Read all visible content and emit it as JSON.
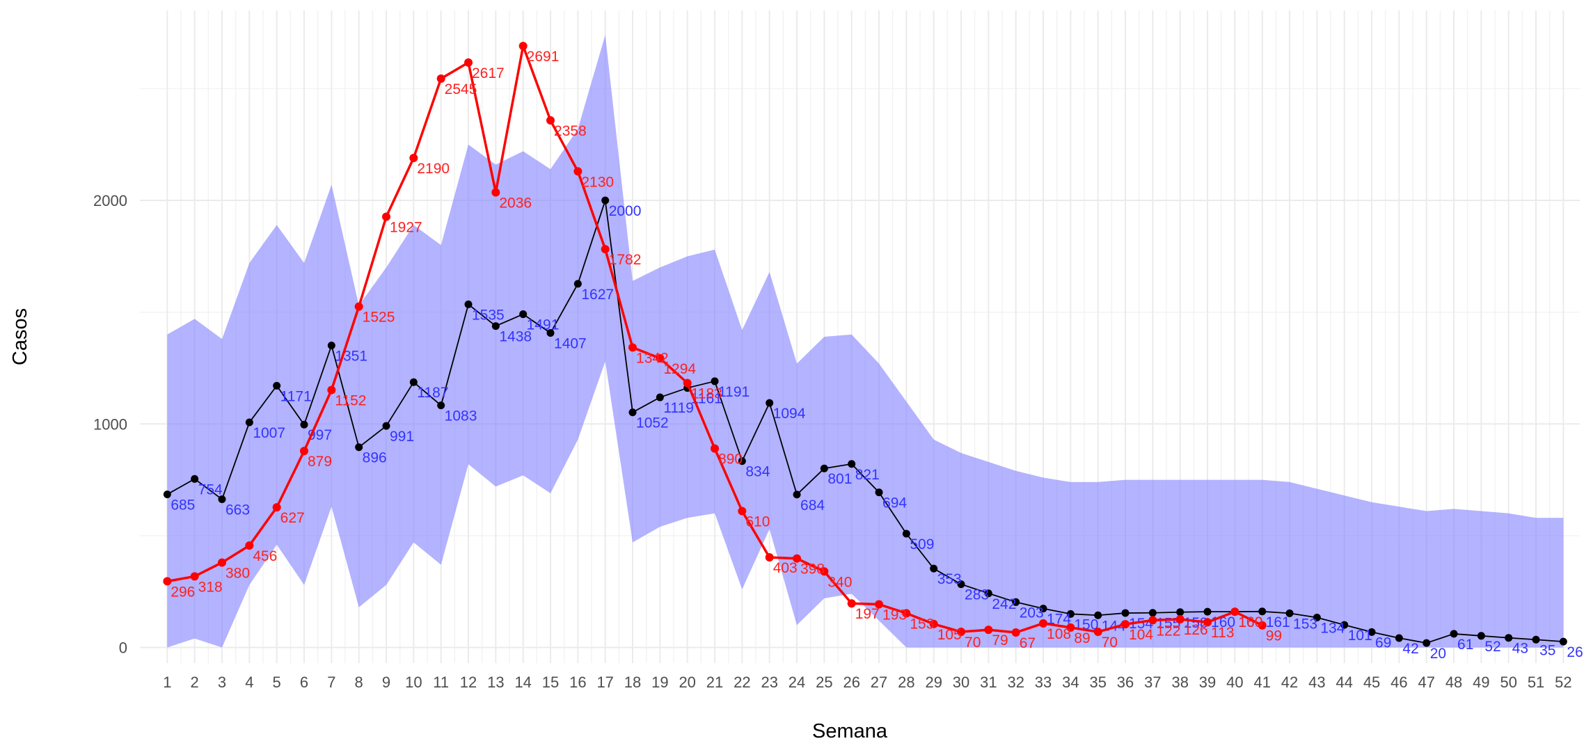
{
  "chart_data": {
    "type": "line",
    "x_label": "Semana",
    "y_label": "Casos",
    "x": [
      1,
      2,
      3,
      4,
      5,
      6,
      7,
      8,
      9,
      10,
      11,
      12,
      13,
      14,
      15,
      16,
      17,
      18,
      19,
      20,
      21,
      22,
      23,
      24,
      25,
      26,
      27,
      28,
      29,
      30,
      31,
      32,
      33,
      34,
      35,
      36,
      37,
      38,
      39,
      40,
      41,
      42,
      43,
      44,
      45,
      46,
      47,
      48,
      49,
      50,
      51,
      52
    ],
    "xlim": [
      0,
      52.6
    ],
    "xticks": [
      1,
      2,
      3,
      4,
      5,
      6,
      7,
      8,
      9,
      10,
      11,
      12,
      13,
      14,
      15,
      16,
      17,
      18,
      19,
      20,
      21,
      22,
      23,
      24,
      25,
      26,
      27,
      28,
      29,
      30,
      31,
      32,
      33,
      34,
      35,
      36,
      37,
      38,
      39,
      40,
      41,
      42,
      43,
      44,
      45,
      46,
      47,
      48,
      49,
      50,
      51,
      52
    ],
    "ylim": [
      -70,
      2850
    ],
    "yticks": [
      0,
      1000,
      2000
    ],
    "yminorticks": [
      500,
      1500,
      2500
    ],
    "grid": true,
    "band": {
      "color": "#8080ff",
      "upper": [
        1400,
        1470,
        1380,
        1720,
        1890,
        1720,
        2070,
        1530,
        1700,
        1890,
        1800,
        2250,
        2160,
        2220,
        2140,
        2320,
        2740,
        1640,
        1700,
        1750,
        1780,
        1420,
        1680,
        1270,
        1390,
        1400,
        1270,
        1100,
        930,
        870,
        830,
        790,
        760,
        740,
        740,
        750,
        750,
        750,
        750,
        750,
        750,
        740,
        710,
        680,
        650,
        630,
        610,
        620,
        610,
        600,
        580,
        580
      ],
      "lower": [
        0,
        40,
        0,
        280,
        460,
        280,
        630,
        180,
        280,
        470,
        370,
        820,
        720,
        770,
        690,
        930,
        1280,
        470,
        540,
        580,
        600,
        260,
        530,
        100,
        220,
        240,
        120,
        0,
        0,
        0,
        0,
        0,
        0,
        0,
        0,
        0,
        0,
        0,
        0,
        0,
        0,
        0,
        0,
        0,
        0,
        0,
        0,
        0,
        0,
        0,
        0,
        0
      ]
    },
    "series": [
      {
        "color": "#000000",
        "label_color": "#3333ff",
        "values": [
          685,
          754,
          663,
          1007,
          1171,
          997,
          1351,
          896,
          991,
          1187,
          1083,
          1535,
          1438,
          1491,
          1407,
          1627,
          2000,
          1052,
          1119,
          1161,
          1191,
          834,
          1094,
          684,
          801,
          821,
          694,
          509,
          353,
          283,
          242,
          203,
          174,
          150,
          144,
          154,
          155,
          158,
          160,
          160,
          161,
          153,
          134,
          101,
          69,
          42,
          20,
          61,
          52,
          43,
          35,
          26
        ]
      },
      {
        "color": "#ff0000",
        "label_color": "#ff2020",
        "values": [
          296,
          318,
          380,
          456,
          627,
          879,
          1152,
          1525,
          1927,
          2190,
          2545,
          2617,
          2036,
          2691,
          2358,
          2130,
          1782,
          1342,
          1294,
          1183,
          890,
          610,
          403,
          398,
          340,
          197,
          193,
          153,
          105,
          70,
          79,
          67,
          108,
          89,
          70,
          104,
          122,
          126,
          113,
          160,
          99,
          null,
          null,
          null,
          null,
          null,
          null,
          null,
          null,
          null,
          null,
          null
        ]
      }
    ]
  }
}
